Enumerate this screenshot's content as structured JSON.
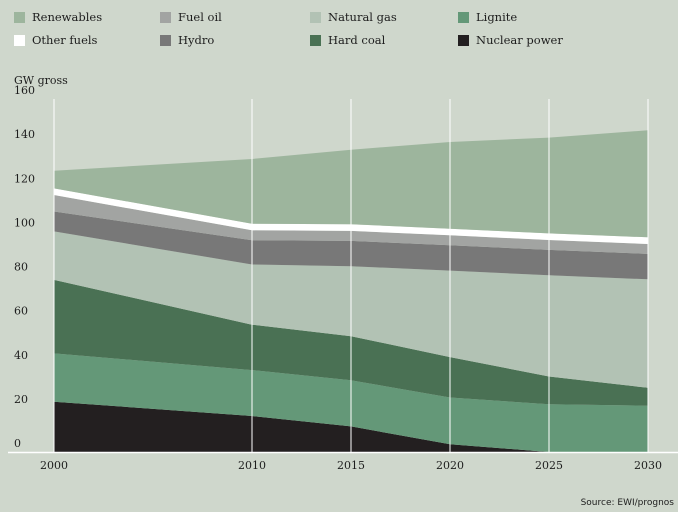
{
  "chart_data": {
    "type": "area",
    "stacked": true,
    "x": [
      2000,
      2010,
      2015,
      2020,
      2025,
      2030
    ],
    "ylabel": "GW gross",
    "ylim": [
      0,
      160
    ],
    "yticks": [
      0,
      20,
      40,
      60,
      80,
      100,
      120,
      140,
      160
    ],
    "xtick_labels": [
      "2000",
      "2010",
      "2015",
      "2020",
      "2025",
      "2030"
    ],
    "grid": "vertical",
    "source": "Source: EWI/prognos",
    "legend_position": "top",
    "series": [
      {
        "name": "Nuclear power",
        "color": "#231f20",
        "values": [
          22.8,
          16.3,
          11.6,
          3.5,
          0,
          0
        ]
      },
      {
        "name": "Lignite",
        "color": "#649878",
        "values": [
          21.9,
          20.8,
          20.9,
          21.2,
          21.6,
          21.0
        ]
      },
      {
        "name": "Hard coal",
        "color": "#4a7154",
        "values": [
          33.3,
          20.6,
          20.0,
          18.3,
          12.6,
          8.1
        ]
      },
      {
        "name": "Natural gas",
        "color": "#b2c2b4",
        "values": [
          22.0,
          27.3,
          31.7,
          39.2,
          45.9,
          49.2
        ]
      },
      {
        "name": "Hydro",
        "color": "#787878",
        "values": [
          9.0,
          11.0,
          11.5,
          11.5,
          11.5,
          11.5
        ]
      },
      {
        "name": "Fuel oil",
        "color": "#a2a4a2",
        "values": [
          7.5,
          4.5,
          4.5,
          4.5,
          4.5,
          4.5
        ]
      },
      {
        "name": "Other fuels",
        "color": "#ffffff",
        "values": [
          3.0,
          3.0,
          3.0,
          3.0,
          3.0,
          3.0
        ]
      },
      {
        "name": "Renewables",
        "color": "#9db59d",
        "values": [
          8.0,
          29.3,
          33.8,
          39.3,
          43.4,
          48.5
        ]
      }
    ],
    "legend_order": [
      "Renewables",
      "Fuel oil",
      "Natural gas",
      "Lignite",
      "Other fuels",
      "Hydro",
      "Hard coal",
      "Nuclear power"
    ]
  }
}
